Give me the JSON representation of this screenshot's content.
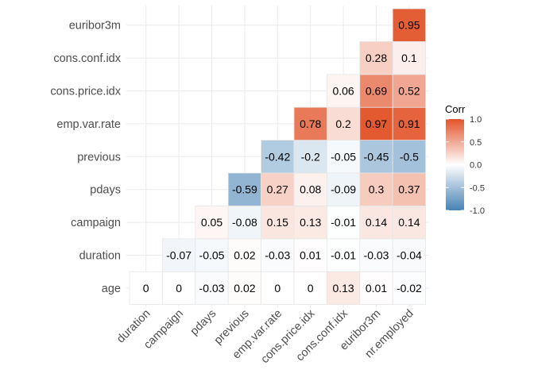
{
  "chart_data": {
    "type": "heatmap",
    "rows": [
      "age",
      "duration",
      "campaign",
      "pdays",
      "previous",
      "emp.var.rate",
      "cons.price.idx",
      "cons.conf.idx",
      "euribor3m"
    ],
    "cols": [
      "duration",
      "campaign",
      "pdays",
      "previous",
      "emp.var.rate",
      "cons.price.idx",
      "cons.conf.idx",
      "euribor3m",
      "nr.employed"
    ],
    "values": [
      [
        0,
        0,
        -0.03,
        0.02,
        0,
        0,
        0.13,
        0.01,
        -0.02
      ],
      [
        null,
        -0.07,
        -0.05,
        0.02,
        -0.03,
        0.01,
        -0.01,
        -0.03,
        -0.04
      ],
      [
        null,
        null,
        0.05,
        -0.08,
        0.15,
        0.13,
        -0.01,
        0.14,
        0.14
      ],
      [
        null,
        null,
        null,
        -0.59,
        0.27,
        0.08,
        -0.09,
        0.3,
        0.37
      ],
      [
        null,
        null,
        null,
        null,
        -0.42,
        -0.2,
        -0.05,
        -0.45,
        -0.5
      ],
      [
        null,
        null,
        null,
        null,
        null,
        0.78,
        0.2,
        0.97,
        0.91
      ],
      [
        null,
        null,
        null,
        null,
        null,
        null,
        0.06,
        0.69,
        0.52
      ],
      [
        null,
        null,
        null,
        null,
        null,
        null,
        null,
        0.28,
        0.1
      ],
      [
        null,
        null,
        null,
        null,
        null,
        null,
        null,
        null,
        0.95
      ]
    ],
    "labels": [
      [
        "0",
        "0",
        "-0.03",
        "0.02",
        "0",
        "0",
        "0.13",
        "0.01",
        "-0.02"
      ],
      [
        null,
        "-0.07",
        "-0.05",
        "0.02",
        "-0.03",
        "0.01",
        "-0.01",
        "-0.03",
        "-0.04"
      ],
      [
        null,
        null,
        "0.05",
        "-0.08",
        "0.15",
        "0.13",
        "-0.01",
        "0.14",
        "0.14"
      ],
      [
        null,
        null,
        null,
        "-0.59",
        "0.27",
        "0.08",
        "-0.09",
        "0.3",
        "0.37"
      ],
      [
        null,
        null,
        null,
        null,
        "-0.42",
        "-0.2",
        "-0.05",
        "-0.45",
        "-0.5"
      ],
      [
        null,
        null,
        null,
        null,
        null,
        "0.78",
        "0.2",
        "0.97",
        "0.91"
      ],
      [
        null,
        null,
        null,
        null,
        null,
        null,
        "0.06",
        "0.69",
        "0.52"
      ],
      [
        null,
        null,
        null,
        null,
        null,
        null,
        null,
        "0.28",
        "0.1"
      ],
      [
        null,
        null,
        null,
        null,
        null,
        null,
        null,
        null,
        "0.95"
      ]
    ],
    "legend": {
      "title": "Corr",
      "ticks": [
        "1.0",
        "0.5",
        "0.0",
        "-0.5",
        "-1.0"
      ],
      "tick_values": [
        1,
        0.5,
        0,
        -0.5,
        -1
      ],
      "placement": "right"
    },
    "scale": {
      "min": -1,
      "max": 1,
      "low_color": "#4682B4",
      "mid_color": "#FFFFFF",
      "high_color": "#E2542A"
    },
    "grid": true,
    "colors": {
      "grid": "#EBEBEB",
      "tile_border": "#E6E6E6",
      "axis_text": "#4D4D4D",
      "cell_text": "#000000"
    }
  }
}
